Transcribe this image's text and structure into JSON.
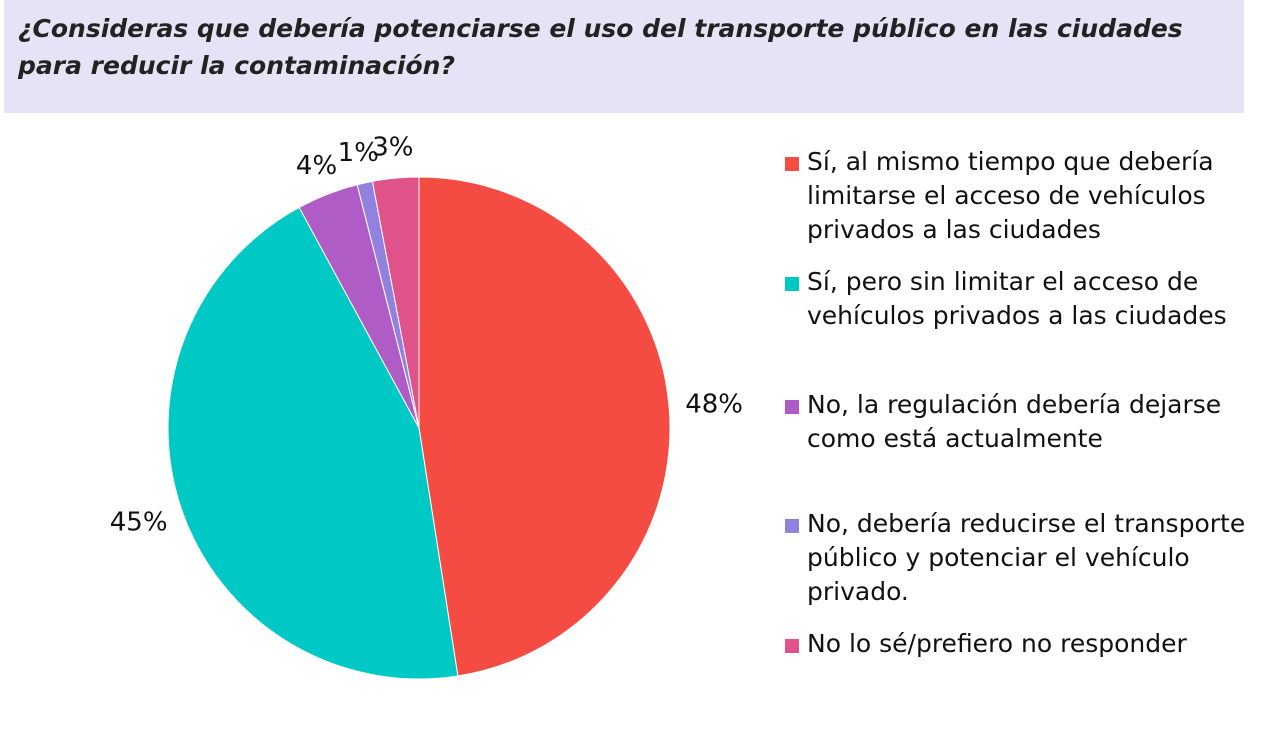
{
  "chart_data": {
    "type": "pie",
    "title": "¿Consideras que debería potenciarse el uso del transporte público en las ciudades para reducir la contaminación?",
    "categories": [
      "Sí, al mismo tiempo que debería limitarse el acceso de vehículos privados a las ciudades",
      "Sí, pero sin limitar el acceso de vehículos privados a las ciudades",
      "No, la regulación debería dejarse como está actualmente",
      "No, debería reducirse el transporte público y potenciar el vehículo privado.",
      "No lo sé/prefiero no responder"
    ],
    "values": [
      48,
      45,
      4,
      1,
      3
    ],
    "value_labels": [
      "48%",
      "45%",
      "4%",
      "1%",
      "3%"
    ],
    "colors": [
      "#f44b43",
      "#00c8c4",
      "#b05cc6",
      "#9282e0",
      "#e0538a"
    ]
  }
}
